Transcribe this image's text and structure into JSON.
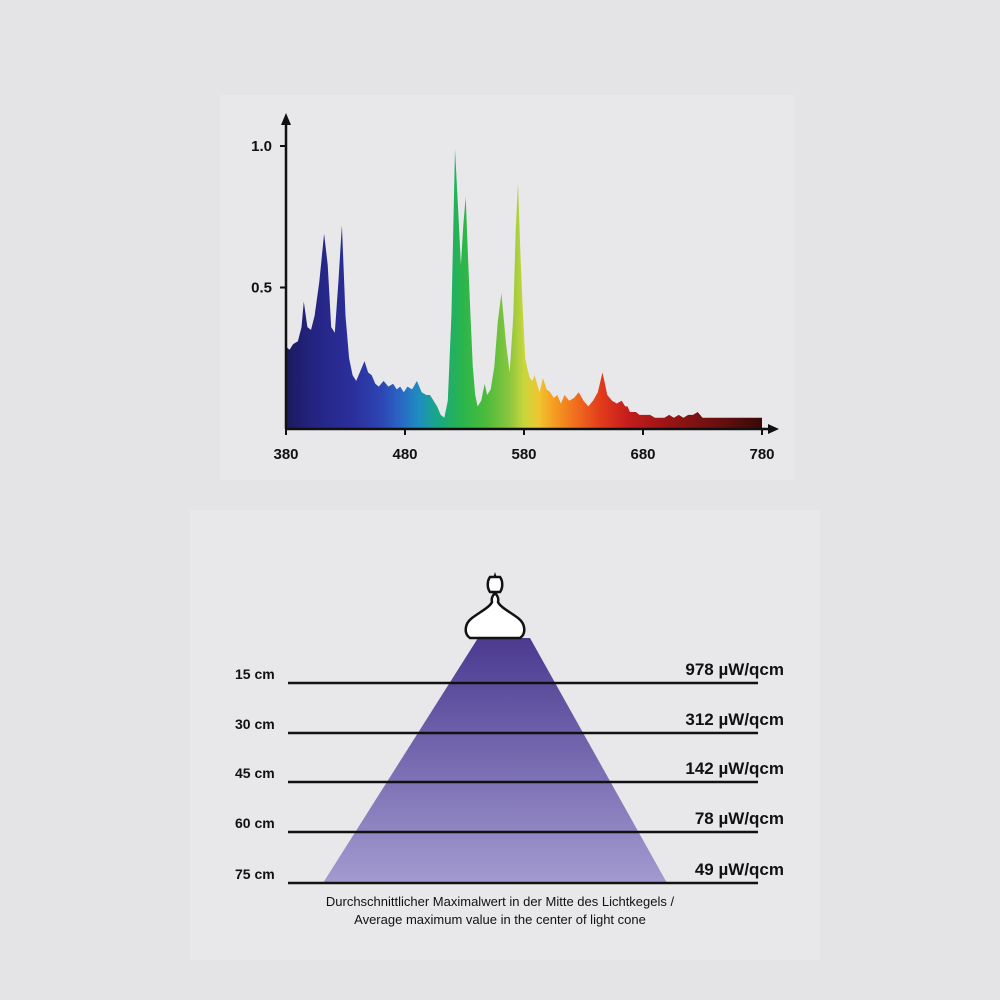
{
  "chart_data": [
    {
      "type": "area",
      "title": "",
      "xlabel": "",
      "ylabel": "",
      "xlim": [
        380,
        780
      ],
      "ylim": [
        0,
        1.05
      ],
      "x_ticks": [
        "380",
        "480",
        "580",
        "680",
        "780"
      ],
      "y_ticks": [
        "1.0",
        "0.5"
      ],
      "grid": false,
      "legend": "none",
      "series": [
        {
          "x": [
            380,
            383,
            386,
            390,
            393,
            395,
            398,
            401,
            404,
            408,
            412,
            415,
            418,
            421,
            424,
            427,
            430,
            433,
            436,
            439,
            442,
            446,
            449,
            452,
            455,
            458,
            462,
            466,
            470,
            473,
            476,
            479,
            482,
            486,
            490,
            494,
            498,
            501,
            504,
            507,
            510,
            513,
            516,
            519,
            522,
            525,
            527,
            529,
            531,
            533,
            535,
            537,
            539,
            541,
            544,
            547,
            549,
            552,
            555,
            558,
            561,
            565,
            568,
            571,
            573,
            575,
            577,
            579,
            581,
            583,
            585,
            587,
            589,
            591,
            593,
            596,
            599,
            602,
            605,
            608,
            611,
            614,
            618,
            622,
            626,
            630,
            634,
            638,
            642,
            646,
            650,
            654,
            658,
            662,
            665,
            667,
            669,
            671,
            674,
            677,
            680,
            683,
            686,
            690,
            694,
            698,
            702,
            706,
            710,
            714,
            718,
            722,
            726,
            730,
            734,
            738,
            742,
            746,
            750,
            754,
            758,
            762,
            766,
            770,
            774,
            778,
            780
          ],
          "y": [
            0.29,
            0.28,
            0.3,
            0.31,
            0.36,
            0.45,
            0.36,
            0.35,
            0.4,
            0.52,
            0.69,
            0.58,
            0.36,
            0.34,
            0.52,
            0.72,
            0.4,
            0.25,
            0.19,
            0.17,
            0.2,
            0.24,
            0.2,
            0.19,
            0.16,
            0.15,
            0.17,
            0.15,
            0.16,
            0.14,
            0.15,
            0.13,
            0.15,
            0.14,
            0.17,
            0.13,
            0.12,
            0.12,
            0.1,
            0.08,
            0.05,
            0.04,
            0.1,
            0.4,
            0.99,
            0.75,
            0.58,
            0.72,
            0.82,
            0.6,
            0.4,
            0.22,
            0.12,
            0.08,
            0.1,
            0.16,
            0.12,
            0.14,
            0.22,
            0.38,
            0.48,
            0.3,
            0.2,
            0.4,
            0.7,
            0.87,
            0.62,
            0.42,
            0.25,
            0.21,
            0.18,
            0.17,
            0.19,
            0.16,
            0.13,
            0.18,
            0.14,
            0.13,
            0.11,
            0.12,
            0.09,
            0.12,
            0.1,
            0.11,
            0.13,
            0.1,
            0.08,
            0.1,
            0.13,
            0.2,
            0.12,
            0.1,
            0.09,
            0.1,
            0.08,
            0.08,
            0.06,
            0.06,
            0.06,
            0.05,
            0.05,
            0.05,
            0.05,
            0.04,
            0.04,
            0.04,
            0.05,
            0.04,
            0.05,
            0.04,
            0.05,
            0.05,
            0.06,
            0.04,
            0.04,
            0.04,
            0.04,
            0.04,
            0.04,
            0.04,
            0.04,
            0.04,
            0.04,
            0.04,
            0.04,
            0.04,
            0.04
          ]
        }
      ]
    },
    {
      "type": "diagram",
      "title": "",
      "rows": [
        {
          "distance": "15 cm",
          "value": "978 µW/qcm"
        },
        {
          "distance": "30 cm",
          "value": "312 µW/qcm"
        },
        {
          "distance": "45 cm",
          "value": "142 µW/qcm"
        },
        {
          "distance": "60 cm",
          "value": "78 µW/qcm"
        },
        {
          "distance": "75 cm",
          "value": "49 µW/qcm"
        }
      ],
      "caption_line1": "Durchschnittlicher Maximalwert in der Mitte des Lichtkegels /",
      "caption_line2": "Average maximum value in the center of light cone",
      "colors": {
        "cone_top": "#4b3a90",
        "cone_bottom": "#a39ad0",
        "bulb": "#ffffff"
      }
    }
  ]
}
